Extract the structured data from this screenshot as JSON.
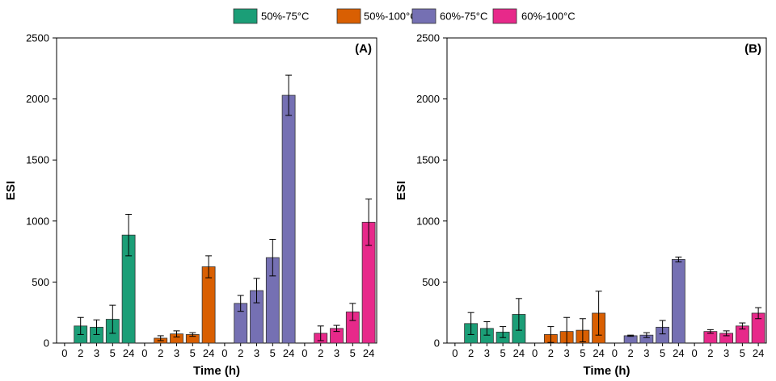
{
  "chart_data": {
    "type": "bar",
    "legend": {
      "placement": "top-center",
      "entries": [
        {
          "label": "50%-75°C",
          "color": "#1b9e77"
        },
        {
          "label": "50%-100°C",
          "color": "#d95f02"
        },
        {
          "label": "60%-75°C",
          "color": "#7570b3"
        },
        {
          "label": "60%-100°C",
          "color": "#e7298a"
        }
      ]
    },
    "time_labels": [
      "0",
      "2",
      "3",
      "5",
      "24"
    ],
    "xlabel": "Time (h)",
    "ylabel": "ESI",
    "ylim": [
      0,
      2500
    ],
    "yticks": [
      "0",
      "500",
      "1000",
      "1500",
      "2000",
      "2500"
    ],
    "panels": [
      {
        "label": "(A)",
        "groups": [
          {
            "series": "50%-75°C",
            "values": [
              0,
              140,
              130,
              195,
              885
            ],
            "errors": [
              0,
              70,
              60,
              115,
              170
            ]
          },
          {
            "series": "50%-100°C",
            "values": [
              0,
              40,
              75,
              70,
              625
            ],
            "errors": [
              0,
              20,
              25,
              15,
              90
            ]
          },
          {
            "series": "60%-75°C",
            "values": [
              0,
              325,
              430,
              700,
              2030
            ],
            "errors": [
              0,
              65,
              100,
              150,
              165
            ]
          },
          {
            "series": "60%-100°C",
            "values": [
              0,
              80,
              120,
              255,
              990
            ],
            "errors": [
              0,
              60,
              25,
              70,
              190
            ]
          }
        ]
      },
      {
        "label": "(B)",
        "groups": [
          {
            "series": "50%-75°C",
            "values": [
              0,
              160,
              120,
              90,
              235
            ],
            "errors": [
              0,
              90,
              55,
              45,
              130
            ]
          },
          {
            "series": "50%-100°C",
            "values": [
              0,
              70,
              95,
              105,
              245
            ],
            "errors": [
              0,
              65,
              115,
              95,
              180
            ]
          },
          {
            "series": "60%-75°C",
            "values": [
              0,
              60,
              65,
              130,
              685
            ],
            "errors": [
              0,
              5,
              20,
              55,
              20
            ]
          },
          {
            "series": "60%-100°C",
            "values": [
              0,
              95,
              80,
              140,
              245
            ],
            "errors": [
              0,
              15,
              20,
              25,
              45
            ]
          }
        ]
      }
    ]
  }
}
